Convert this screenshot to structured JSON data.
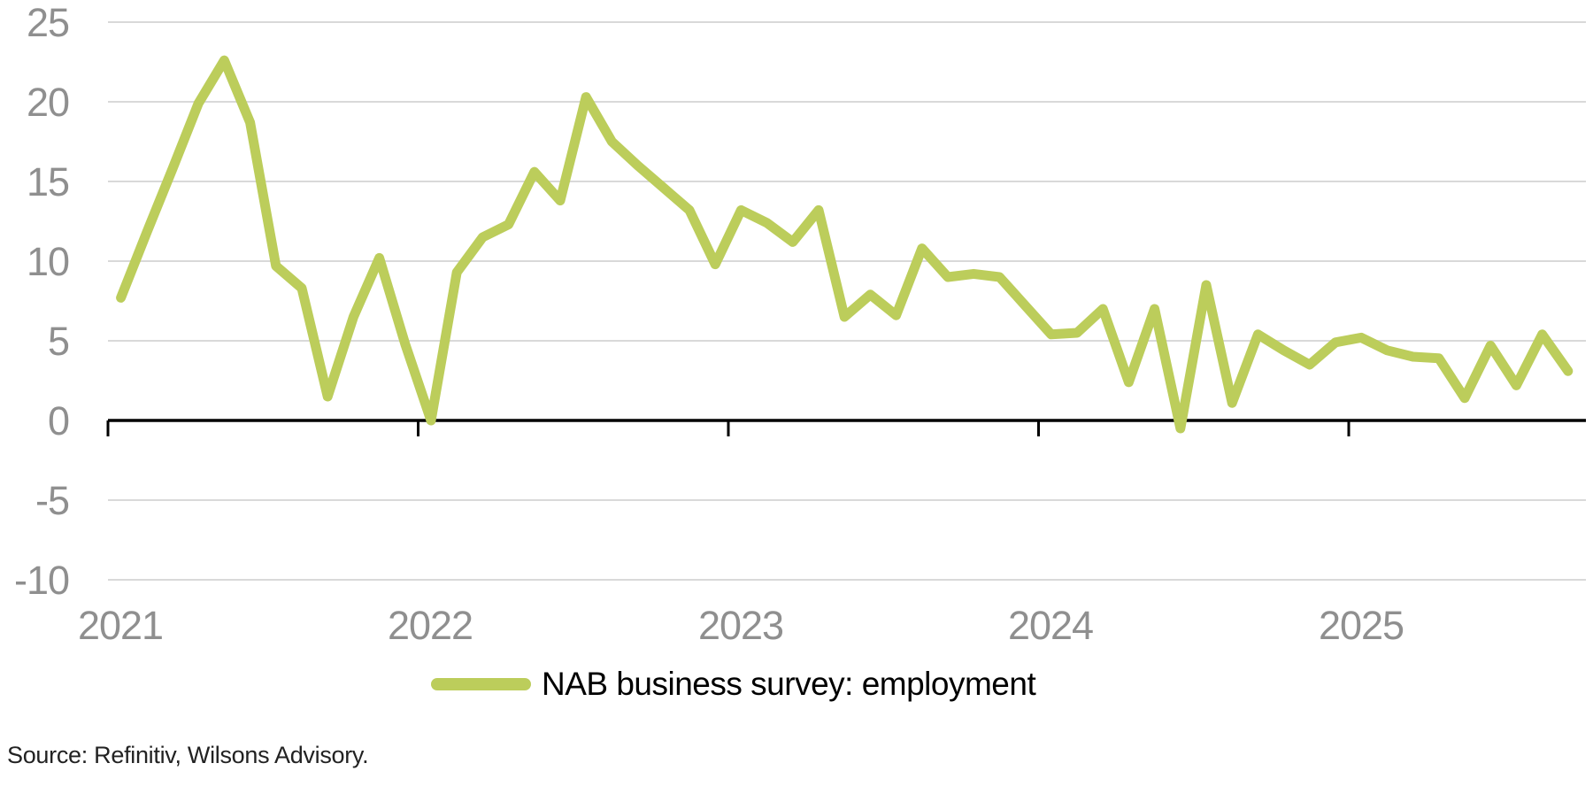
{
  "chart": {
    "legend_label": "NAB business survey: employment",
    "source_note": "Source: Refinitiv, Wilsons Advisory.",
    "line_color": "#bccd5b",
    "gridline_color": "#d9d9d9",
    "axis_color": "#000000",
    "tick_label_color": "#8f8f8f"
  },
  "chart_data": {
    "type": "line",
    "title": "",
    "series": [
      {
        "name": "NAB business survey: employment",
        "start": "Jan 2021",
        "end": "Sep 2025",
        "frequency": "monthly",
        "values": [
          7.7,
          11.8,
          15.8,
          19.9,
          22.6,
          18.7,
          9.7,
          8.3,
          1.5,
          6.5,
          10.2,
          4.8,
          0.0,
          9.3,
          11.5,
          12.3,
          15.6,
          13.8,
          20.3,
          17.5,
          16.0,
          14.6,
          13.2,
          9.8,
          13.2,
          12.4,
          11.2,
          13.2,
          6.5,
          7.9,
          6.6,
          10.8,
          9.0,
          9.2,
          9.0,
          7.2,
          5.4,
          5.5,
          7.0,
          2.4,
          7.0,
          -0.5,
          8.5,
          1.1,
          5.4,
          4.4,
          3.5,
          4.9,
          5.2,
          4.4,
          4.0,
          3.9,
          1.4,
          4.7,
          2.2,
          5.4,
          3.1
        ]
      }
    ],
    "x_tick_labels": [
      "2021",
      "2022",
      "2023",
      "2024",
      "2025"
    ],
    "y_ticks": [
      "25",
      "20",
      "15",
      "10",
      "5",
      "0",
      "-5",
      "-10"
    ],
    "ylim": [
      -10,
      25
    ],
    "grid": "horizontal",
    "legend_position": "bottom",
    "xlabel": "",
    "ylabel": ""
  }
}
